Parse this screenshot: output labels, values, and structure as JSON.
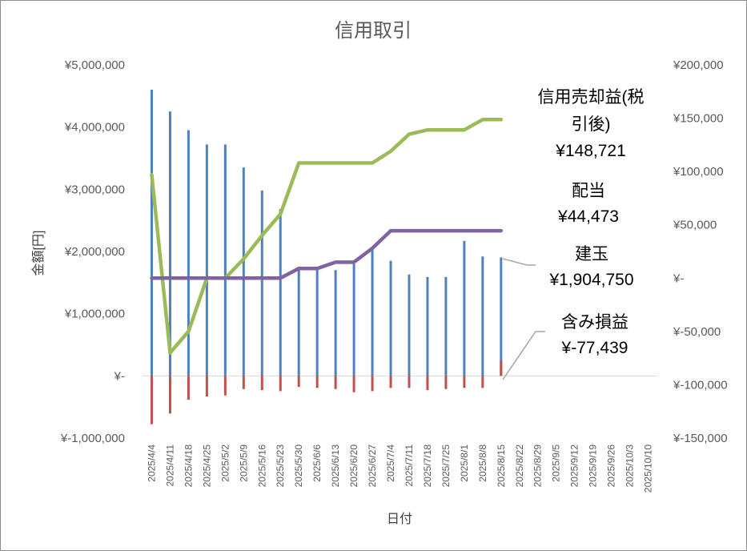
{
  "chart_data": {
    "type": "bar",
    "title": "信用取引",
    "xlabel": "日付",
    "ylabel": "金額[円]",
    "y_left": {
      "ylim": [
        -1000000,
        5000000
      ],
      "ticks": [
        -1000000,
        0,
        1000000,
        2000000,
        3000000,
        4000000,
        5000000
      ],
      "tick_labels": [
        "¥-1,000,000",
        "¥-",
        "¥1,000,000",
        "¥2,000,000",
        "¥3,000,000",
        "¥4,000,000",
        "¥5,000,000"
      ]
    },
    "y_right": {
      "ylim": [
        -150000,
        200000
      ],
      "ticks": [
        -150000,
        -100000,
        -50000,
        0,
        50000,
        100000,
        150000,
        200000
      ],
      "tick_labels": [
        "¥-150,000",
        "¥-100,000",
        "¥-50,000",
        "¥-",
        "¥50,000",
        "¥100,000",
        "¥150,000",
        "¥200,000"
      ]
    },
    "categories": [
      "2025/4/4",
      "2025/4/11",
      "2025/4/18",
      "2025/4/25",
      "2025/5/2",
      "2025/5/9",
      "2025/5/16",
      "2025/5/23",
      "2025/5/30",
      "2025/6/6",
      "2025/6/13",
      "2025/6/20",
      "2025/6/27",
      "2025/7/4",
      "2025/7/11",
      "2025/7/18",
      "2025/7/25",
      "2025/8/1",
      "2025/8/8",
      "2025/8/15",
      "2025/8/22",
      "2025/8/29",
      "2025/9/5",
      "2025/9/12",
      "2025/9/19",
      "2025/9/26",
      "2025/10/3",
      "2025/10/10"
    ],
    "series": [
      {
        "name": "建玉",
        "kind": "bar",
        "axis": "left",
        "color": "#4f81bd",
        "values": [
          4600000,
          4250000,
          3950000,
          3720000,
          3720000,
          3350000,
          2980000,
          2680000,
          1720000,
          1720000,
          1700000,
          1800000,
          2050000,
          1850000,
          1630000,
          1590000,
          1590000,
          2170000,
          1920000,
          1904750,
          null,
          null,
          null,
          null,
          null,
          null,
          null,
          null
        ]
      },
      {
        "name": "含み損益",
        "kind": "bar",
        "axis": "right",
        "color": "#c0504d",
        "values": [
          -137000,
          -127000,
          -114000,
          -111000,
          -110000,
          -104000,
          -105000,
          -106000,
          -102000,
          -103000,
          -104000,
          -107000,
          -106000,
          -103000,
          -103000,
          -105000,
          -104000,
          -103000,
          -103000,
          -77439,
          null,
          null,
          null,
          null,
          null,
          null,
          null,
          null
        ]
      },
      {
        "name": "信用売却益(税引後)",
        "kind": "line",
        "axis": "right",
        "color": "#9bbb59",
        "values": [
          97000,
          -70000,
          -50000,
          0,
          0,
          18000,
          40000,
          60000,
          108000,
          108000,
          108000,
          108000,
          108000,
          119000,
          135000,
          139000,
          139000,
          139000,
          148721,
          148721,
          null,
          null,
          null,
          null,
          null,
          null,
          null,
          null
        ]
      },
      {
        "name": "配当",
        "kind": "line",
        "axis": "right",
        "color": "#8064a2",
        "values": [
          0,
          0,
          0,
          0,
          0,
          0,
          0,
          0,
          9000,
          9000,
          15000,
          15000,
          28000,
          44473,
          44473,
          44473,
          44473,
          44473,
          44473,
          44473,
          null,
          null,
          null,
          null,
          null,
          null,
          null,
          null
        ]
      }
    ],
    "annotations": [
      {
        "series": "信用売却益(税引後)",
        "lines": [
          "信用売却益(税",
          "引後)",
          "¥148,721"
        ]
      },
      {
        "series": "配当",
        "lines": [
          "配当",
          "¥44,473"
        ]
      },
      {
        "series": "建玉",
        "lines": [
          "建玉",
          "¥1,904,750"
        ]
      },
      {
        "series": "含み損益",
        "lines": [
          "含み損益",
          "¥-77,439"
        ]
      }
    ],
    "grid": false,
    "legend": "none"
  }
}
